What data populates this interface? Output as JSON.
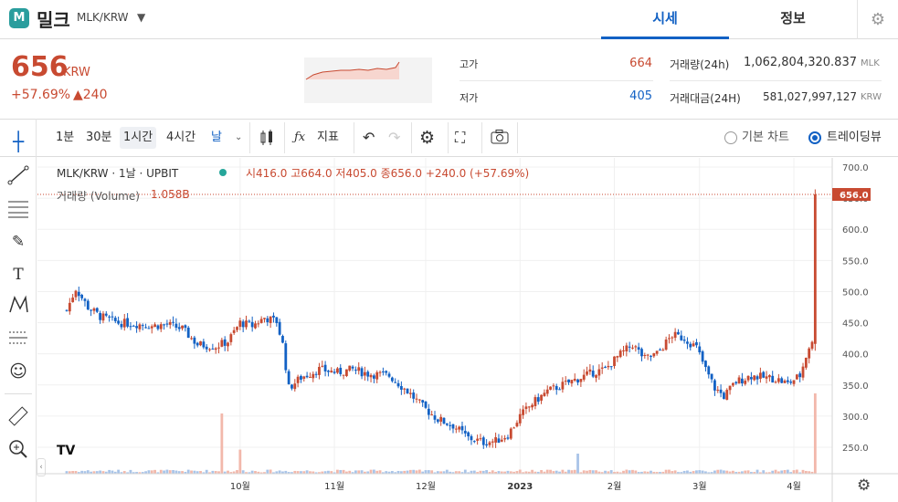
{
  "header": {
    "logo_text": "M",
    "coin_name": "밀크",
    "pair": "MLK/KRW",
    "dropdown_icon": "chevron-down-icon",
    "tabs": [
      {
        "label": "시세",
        "active": true
      },
      {
        "label": "정보",
        "active": false
      }
    ],
    "settings_icon": "gear-icon"
  },
  "summary": {
    "price": "656",
    "price_unit": "KRW",
    "change_rate": "+57.69%",
    "change_amount": "▲240",
    "high_label": "고가",
    "high_value": "664",
    "low_label": "저가",
    "low_value": "405",
    "volume_label": "거래량(24h)",
    "volume_value": "1,062,804,320.837",
    "volume_unit": "MLK",
    "amount_label": "거래대금(24H)",
    "amount_value": "581,027,997,127",
    "amount_unit": "KRW"
  },
  "toolbar": {
    "intervals": [
      "1분",
      "30분",
      "1시간",
      "4시간",
      "날"
    ],
    "selected_interval": "날",
    "indicator_label": "지표",
    "chart_type_options": [
      "기본 차트",
      "트레이딩뷰"
    ],
    "selected_chart_type": "트레이딩뷰"
  },
  "chart_header": {
    "symbol_line": "MLK/KRW · 1날 · UPBIT",
    "ohlc": "시416.0 고664.0 저405.0 종656.0 +240.0 (+57.69%)",
    "volume_label": "거래량 (Volume)",
    "volume_value": "1.058B",
    "logo": "TV"
  },
  "colors": {
    "up": "#c84a31",
    "down": "#1261c4",
    "accent": "#1261c4",
    "teal": "#26a69a"
  },
  "chart_data": {
    "type": "candlestick",
    "y_ticks": [
      700,
      650,
      600,
      550,
      500,
      450,
      400,
      350,
      300,
      250
    ],
    "y_tick_labels": [
      "700.0",
      "650.0",
      "600.0",
      "550.0",
      "500.0",
      "450.0",
      "400.0",
      "350.0",
      "300.0",
      "250.0"
    ],
    "ylim": [
      200,
      720
    ],
    "x_tick_labels": [
      "10월",
      "11월",
      "12월",
      "2023",
      "2월",
      "3월",
      "4월"
    ],
    "last_price_label": "656.0",
    "last_price": 656,
    "trend_points": [
      [
        "2022-09-05",
        470
      ],
      [
        "2022-09-08",
        505
      ],
      [
        "2022-09-12",
        475
      ],
      [
        "2022-09-16",
        460
      ],
      [
        "2022-09-22",
        450
      ],
      [
        "2022-09-28",
        448
      ],
      [
        "2022-10-03",
        445
      ],
      [
        "2022-10-08",
        447
      ],
      [
        "2022-10-13",
        440
      ],
      [
        "2022-10-18",
        415
      ],
      [
        "2022-10-24",
        412
      ],
      [
        "2022-10-28",
        420
      ],
      [
        "2022-11-01",
        450
      ],
      [
        "2022-11-05",
        445
      ],
      [
        "2022-11-09",
        458
      ],
      [
        "2022-11-13",
        452
      ],
      [
        "2022-11-15",
        415
      ],
      [
        "2022-11-17",
        345
      ],
      [
        "2022-11-21",
        362
      ],
      [
        "2022-11-27",
        375
      ],
      [
        "2022-12-03",
        370
      ],
      [
        "2022-12-08",
        375
      ],
      [
        "2022-12-13",
        368
      ],
      [
        "2022-12-20",
        365
      ],
      [
        "2022-12-26",
        340
      ],
      [
        "2022-12-31",
        315
      ],
      [
        "2023-01-05",
        295
      ],
      [
        "2023-01-10",
        285
      ],
      [
        "2023-01-15",
        265
      ],
      [
        "2023-01-20",
        258
      ],
      [
        "2023-01-24",
        260
      ],
      [
        "2023-01-28",
        270
      ],
      [
        "2023-02-01",
        300
      ],
      [
        "2023-02-05",
        320
      ],
      [
        "2023-02-10",
        340
      ],
      [
        "2023-02-15",
        350
      ],
      [
        "2023-02-20",
        360
      ],
      [
        "2023-02-25",
        370
      ],
      [
        "2023-03-01",
        375
      ],
      [
        "2023-03-05",
        395
      ],
      [
        "2023-03-10",
        415
      ],
      [
        "2023-03-14",
        392
      ],
      [
        "2023-03-18",
        400
      ],
      [
        "2023-03-23",
        430
      ],
      [
        "2023-03-27",
        425
      ],
      [
        "2023-03-31",
        410
      ],
      [
        "2023-04-03",
        375
      ],
      [
        "2023-04-06",
        345
      ],
      [
        "2023-04-09",
        332
      ],
      [
        "2023-04-13",
        355
      ],
      [
        "2023-04-18",
        365
      ],
      [
        "2023-04-22",
        362
      ],
      [
        "2023-04-26",
        360
      ],
      [
        "2023-04-30",
        352
      ],
      [
        "2023-05-04",
        365
      ],
      [
        "2023-05-07",
        412
      ],
      [
        "2023-05-08",
        416
      ],
      [
        "2023-05-09",
        656
      ]
    ],
    "volume_spikes": [
      [
        "2022-10-26",
        0.75
      ],
      [
        "2022-11-01",
        0.3
      ],
      [
        "2023-02-20",
        0.25
      ],
      [
        "2023-05-09",
        1.0
      ]
    ]
  }
}
